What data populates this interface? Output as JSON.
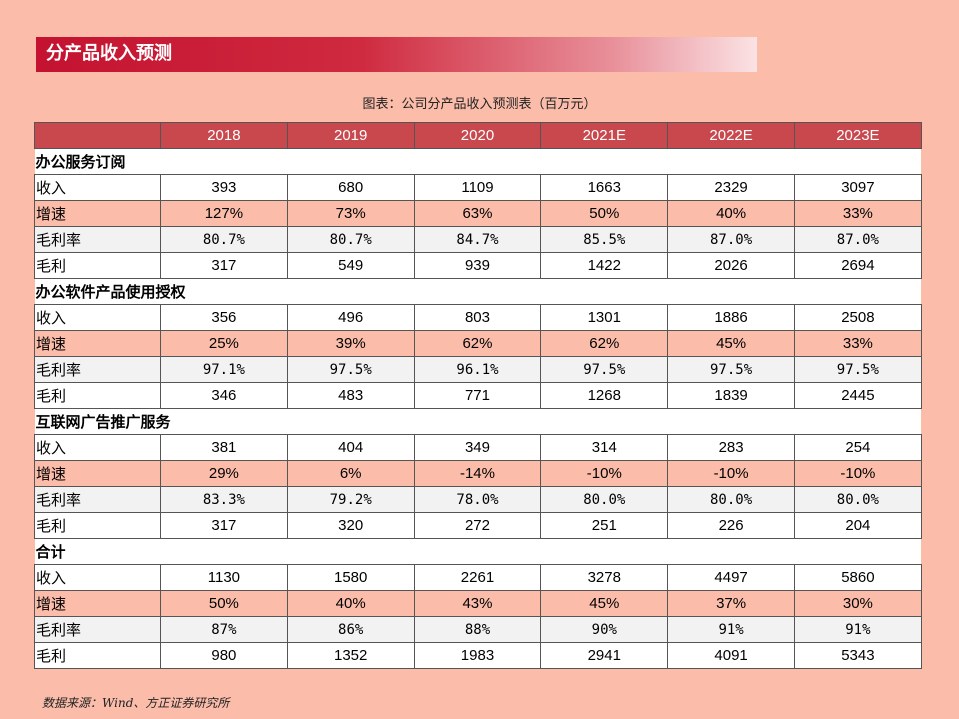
{
  "banner": {
    "title": "分产品收入预测"
  },
  "caption": "图表：公司分产品收入预测表（百万元）",
  "table": {
    "columns": [
      "2018",
      "2019",
      "2020",
      "2021E",
      "2022E",
      "2023E"
    ],
    "sections": [
      {
        "name": "办公服务订阅",
        "rows": [
          {
            "label": "收入",
            "values": [
              "393",
              "680",
              "1109",
              "1663",
              "2329",
              "3097"
            ]
          },
          {
            "label": "增速",
            "values": [
              "127%",
              "73%",
              "63%",
              "50%",
              "40%",
              "33%"
            ]
          },
          {
            "label": "毛利率",
            "values": [
              "80.7%",
              "80.7%",
              "84.7%",
              "85.5%",
              "87.0%",
              "87.0%"
            ]
          },
          {
            "label": "毛利",
            "values": [
              "317",
              "549",
              "939",
              "1422",
              "2026",
              "2694"
            ]
          }
        ]
      },
      {
        "name": "办公软件产品使用授权",
        "rows": [
          {
            "label": "收入",
            "values": [
              "356",
              "496",
              "803",
              "1301",
              "1886",
              "2508"
            ]
          },
          {
            "label": "增速",
            "values": [
              "25%",
              "39%",
              "62%",
              "62%",
              "45%",
              "33%"
            ]
          },
          {
            "label": "毛利率",
            "values": [
              "97.1%",
              "97.5%",
              "96.1%",
              "97.5%",
              "97.5%",
              "97.5%"
            ]
          },
          {
            "label": "毛利",
            "values": [
              "346",
              "483",
              "771",
              "1268",
              "1839",
              "2445"
            ]
          }
        ]
      },
      {
        "name": "互联网广告推广服务",
        "rows": [
          {
            "label": "收入",
            "values": [
              "381",
              "404",
              "349",
              "314",
              "283",
              "254"
            ]
          },
          {
            "label": "增速",
            "values": [
              "29%",
              "6%",
              "-14%",
              "-10%",
              "-10%",
              "-10%"
            ]
          },
          {
            "label": "毛利率",
            "values": [
              "83.3%",
              "79.2%",
              "78.0%",
              "80.0%",
              "80.0%",
              "80.0%"
            ]
          },
          {
            "label": "毛利",
            "values": [
              "317",
              "320",
              "272",
              "251",
              "226",
              "204"
            ]
          }
        ]
      },
      {
        "name": "合计",
        "rows": [
          {
            "label": "收入",
            "values": [
              "1130",
              "1580",
              "2261",
              "3278",
              "4497",
              "5860"
            ]
          },
          {
            "label": "增速",
            "values": [
              "50%",
              "40%",
              "43%",
              "45%",
              "37%",
              "30%"
            ]
          },
          {
            "label": "毛利率",
            "values": [
              "87%",
              "86%",
              "88%",
              "90%",
              "91%",
              "91%"
            ]
          },
          {
            "label": "毛利",
            "values": [
              "980",
              "1352",
              "1983",
              "2941",
              "4091",
              "5343"
            ]
          }
        ]
      }
    ]
  },
  "source": "数据来源：Wind、方正证券研究所",
  "colors": {
    "page_background": "#fbbcaa",
    "banner_red": "#c41230",
    "header_red": "#c8484e"
  }
}
